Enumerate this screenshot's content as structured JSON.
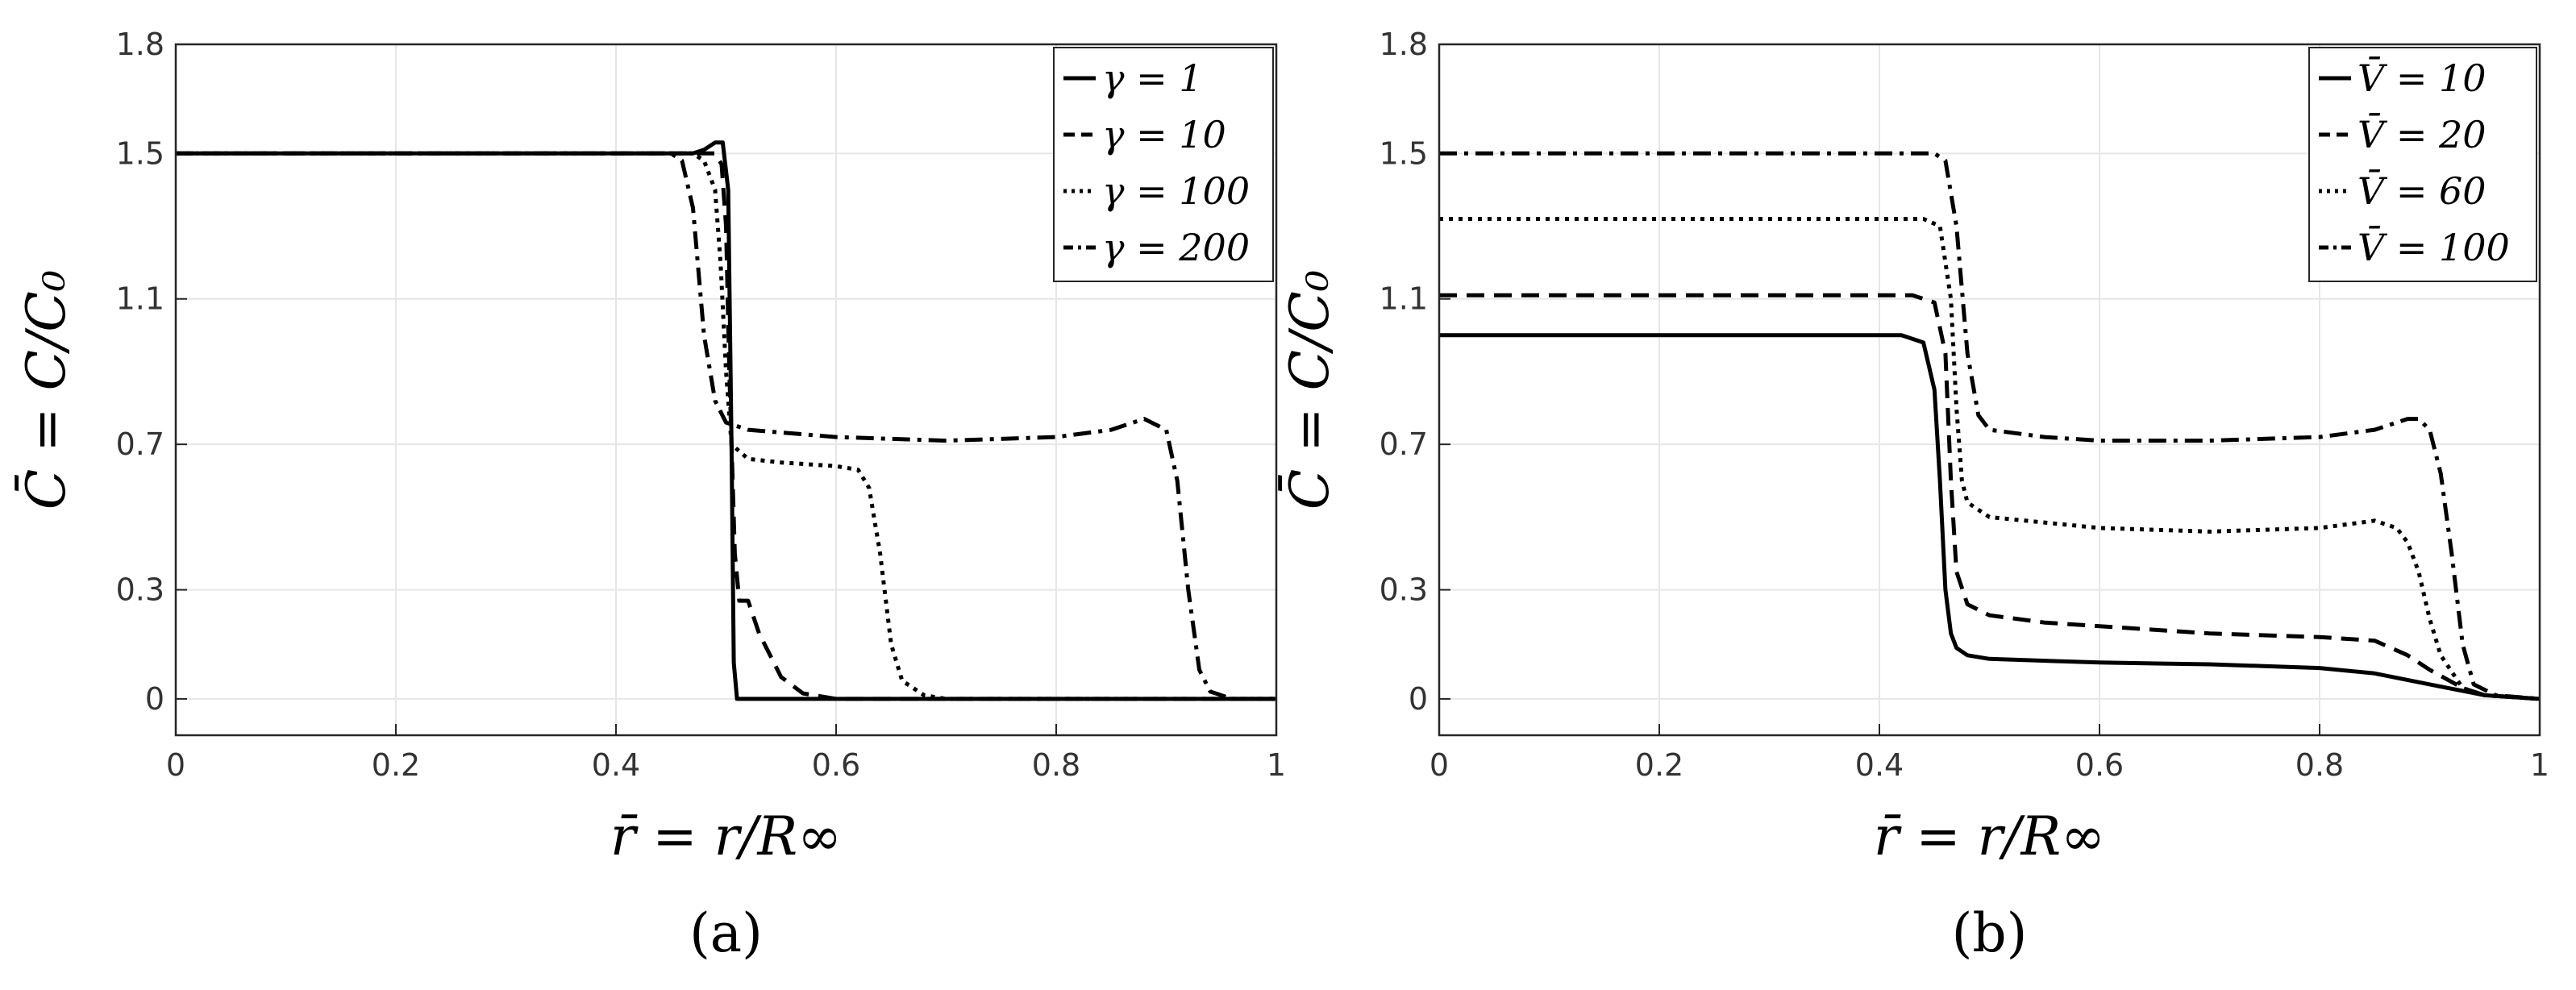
{
  "chart_data": [
    {
      "type": "line",
      "panel_label": "(a)",
      "xlabel": "r̄ = r/R∞",
      "ylabel": "C̄ = C/C₀",
      "xlim": [
        0,
        1
      ],
      "ylim": [
        -0.1,
        1.8
      ],
      "xticks": [
        "0",
        "0.2",
        "0.4",
        "0.6",
        "0.8",
        "1"
      ],
      "yticks": [
        "0",
        "0.3",
        "0.7",
        "1.1",
        "1.5",
        "1.8"
      ],
      "grid": true,
      "legend_position": "top-right",
      "series": [
        {
          "name": "γ = 1",
          "dash": "solid",
          "x": [
            0,
            0.47,
            0.48,
            0.49,
            0.497,
            0.502,
            0.505,
            0.507,
            0.51,
            0.53,
            0.6,
            0.8,
            1
          ],
          "y": [
            1.5,
            1.5,
            1.51,
            1.53,
            1.53,
            1.4,
            0.7,
            0.1,
            0.0,
            0.0,
            0.0,
            0.0,
            0.0
          ]
        },
        {
          "name": "γ = 10",
          "dash": "dashed",
          "x": [
            0,
            0.49,
            0.496,
            0.5,
            0.503,
            0.508,
            0.512,
            0.52,
            0.53,
            0.55,
            0.57,
            0.6,
            0.8,
            1
          ],
          "y": [
            1.5,
            1.5,
            1.47,
            1.3,
            0.9,
            0.4,
            0.27,
            0.27,
            0.18,
            0.06,
            0.015,
            0.0,
            0.0,
            0.0
          ]
        },
        {
          "name": "γ = 100",
          "dash": "dotted",
          "x": [
            0,
            0.47,
            0.48,
            0.49,
            0.495,
            0.5,
            0.505,
            0.52,
            0.55,
            0.6,
            0.62,
            0.63,
            0.64,
            0.65,
            0.66,
            0.68,
            0.7,
            0.75,
            1
          ],
          "y": [
            1.5,
            1.5,
            1.48,
            1.4,
            1.2,
            0.9,
            0.7,
            0.66,
            0.65,
            0.64,
            0.63,
            0.58,
            0.4,
            0.15,
            0.05,
            0.01,
            0.0,
            0.0,
            0.0
          ]
        },
        {
          "name": "γ = 200",
          "dash": "dashdot",
          "x": [
            0,
            0.45,
            0.46,
            0.47,
            0.48,
            0.49,
            0.5,
            0.52,
            0.6,
            0.7,
            0.8,
            0.85,
            0.88,
            0.9,
            0.91,
            0.92,
            0.93,
            0.94,
            0.96,
            1
          ],
          "y": [
            1.5,
            1.5,
            1.48,
            1.35,
            1.0,
            0.82,
            0.76,
            0.74,
            0.72,
            0.71,
            0.72,
            0.74,
            0.77,
            0.74,
            0.6,
            0.3,
            0.08,
            0.02,
            0.0,
            0.0
          ]
        }
      ]
    },
    {
      "type": "line",
      "panel_label": "(b)",
      "xlabel": "r̄ = r/R∞",
      "ylabel": "C̄ = C/C₀",
      "xlim": [
        0,
        1
      ],
      "ylim": [
        -0.1,
        1.8
      ],
      "xticks": [
        "0",
        "0.2",
        "0.4",
        "0.6",
        "0.8",
        "1"
      ],
      "yticks": [
        "0",
        "0.3",
        "0.7",
        "1.1",
        "1.5",
        "1.8"
      ],
      "grid": true,
      "legend_position": "top-right",
      "series": [
        {
          "name": "V̄ = 10",
          "dash": "solid",
          "x": [
            0,
            0.42,
            0.44,
            0.45,
            0.455,
            0.46,
            0.465,
            0.47,
            0.48,
            0.5,
            0.6,
            0.7,
            0.8,
            0.85,
            0.9,
            0.95,
            1
          ],
          "y": [
            1.0,
            1.0,
            0.98,
            0.85,
            0.6,
            0.3,
            0.18,
            0.14,
            0.12,
            0.11,
            0.1,
            0.095,
            0.085,
            0.07,
            0.04,
            0.01,
            0.0
          ]
        },
        {
          "name": "V̄ = 20",
          "dash": "dashed",
          "x": [
            0,
            0.43,
            0.45,
            0.46,
            0.465,
            0.47,
            0.48,
            0.5,
            0.55,
            0.6,
            0.7,
            0.8,
            0.85,
            0.88,
            0.9,
            0.93,
            0.95,
            1
          ],
          "y": [
            1.11,
            1.11,
            1.09,
            0.95,
            0.6,
            0.35,
            0.26,
            0.23,
            0.21,
            0.2,
            0.18,
            0.17,
            0.16,
            0.12,
            0.08,
            0.03,
            0.01,
            0.0
          ]
        },
        {
          "name": "V̄ = 60",
          "dash": "dotted",
          "x": [
            0,
            0.44,
            0.455,
            0.465,
            0.47,
            0.475,
            0.48,
            0.5,
            0.6,
            0.7,
            0.8,
            0.85,
            0.87,
            0.88,
            0.89,
            0.9,
            0.91,
            0.93,
            0.95,
            1
          ],
          "y": [
            1.32,
            1.32,
            1.3,
            1.1,
            0.8,
            0.6,
            0.54,
            0.5,
            0.47,
            0.46,
            0.47,
            0.49,
            0.47,
            0.43,
            0.35,
            0.22,
            0.12,
            0.03,
            0.01,
            0.0
          ]
        },
        {
          "name": "V̄ = 100",
          "dash": "dashdot",
          "x": [
            0,
            0.45,
            0.46,
            0.47,
            0.48,
            0.49,
            0.5,
            0.55,
            0.6,
            0.7,
            0.8,
            0.85,
            0.88,
            0.89,
            0.9,
            0.91,
            0.92,
            0.93,
            0.94,
            0.96,
            1
          ],
          "y": [
            1.5,
            1.5,
            1.48,
            1.3,
            0.95,
            0.78,
            0.74,
            0.72,
            0.71,
            0.71,
            0.72,
            0.74,
            0.77,
            0.77,
            0.74,
            0.62,
            0.4,
            0.15,
            0.04,
            0.01,
            0.0
          ]
        }
      ]
    }
  ]
}
